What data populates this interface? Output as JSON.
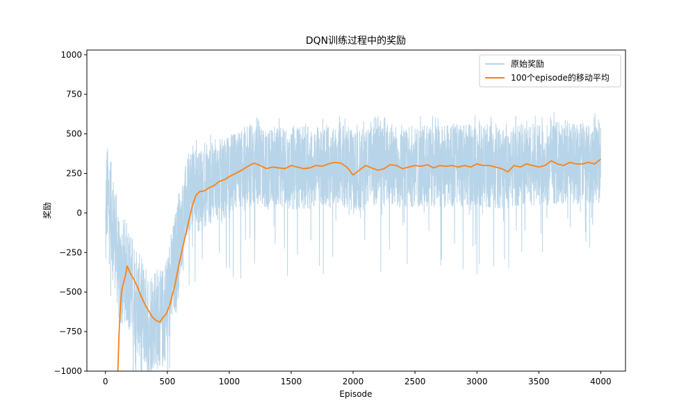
{
  "chart_data": {
    "type": "line",
    "title": "DQN训练过程中的奖励",
    "xlabel": "Episode",
    "ylabel": "奖励",
    "xlim": [
      -150,
      4200
    ],
    "ylim": [
      -1000,
      1030
    ],
    "xticks": [
      0,
      500,
      1000,
      1500,
      2000,
      2500,
      3000,
      3500,
      4000
    ],
    "yticks": [
      -1000,
      -750,
      -500,
      -250,
      0,
      250,
      500,
      750,
      1000
    ],
    "grid": false,
    "legend_position": "top-right",
    "series": [
      {
        "name": "原始奖励",
        "color": "#b8d4e8",
        "style": "noisy-band",
        "points": [
          [
            0,
            -150
          ],
          [
            10,
            120
          ],
          [
            30,
            60
          ],
          [
            60,
            -60
          ],
          [
            90,
            -220
          ],
          [
            120,
            -450
          ],
          [
            150,
            -350
          ],
          [
            200,
            -430
          ],
          [
            250,
            -560
          ],
          [
            300,
            -620
          ],
          [
            350,
            -700
          ],
          [
            400,
            -640
          ],
          [
            450,
            -700
          ],
          [
            500,
            -560
          ],
          [
            550,
            -380
          ],
          [
            600,
            -150
          ],
          [
            650,
            60
          ],
          [
            700,
            180
          ],
          [
            750,
            140
          ],
          [
            800,
            160
          ],
          [
            850,
            190
          ],
          [
            900,
            200
          ],
          [
            1000,
            230
          ],
          [
            1100,
            270
          ],
          [
            1200,
            300
          ],
          [
            1300,
            280
          ],
          [
            1400,
            290
          ],
          [
            1500,
            280
          ],
          [
            1600,
            285
          ],
          [
            1700,
            290
          ],
          [
            1800,
            300
          ],
          [
            1900,
            310
          ],
          [
            2000,
            250
          ],
          [
            2100,
            280
          ],
          [
            2200,
            300
          ],
          [
            2300,
            280
          ],
          [
            2400,
            300
          ],
          [
            2500,
            290
          ],
          [
            2600,
            300
          ],
          [
            2700,
            290
          ],
          [
            2800,
            300
          ],
          [
            2900,
            300
          ],
          [
            3000,
            300
          ],
          [
            3100,
            290
          ],
          [
            3200,
            280
          ],
          [
            3300,
            300
          ],
          [
            3400,
            310
          ],
          [
            3500,
            300
          ],
          [
            3600,
            320
          ],
          [
            3700,
            310
          ],
          [
            3800,
            320
          ],
          [
            3900,
            310
          ],
          [
            4000,
            330
          ]
        ]
      },
      {
        "name": "100个episode的移动平均",
        "color": "#ff7f0e",
        "style": "line",
        "points": [
          [
            100,
            -1000
          ],
          [
            110,
            -760
          ],
          [
            120,
            -600
          ],
          [
            130,
            -500
          ],
          [
            140,
            -460
          ],
          [
            150,
            -430
          ],
          [
            160,
            -400
          ],
          [
            175,
            -335
          ],
          [
            200,
            -380
          ],
          [
            230,
            -420
          ],
          [
            260,
            -470
          ],
          [
            290,
            -530
          ],
          [
            320,
            -580
          ],
          [
            350,
            -620
          ],
          [
            380,
            -660
          ],
          [
            410,
            -680
          ],
          [
            440,
            -690
          ],
          [
            460,
            -665
          ],
          [
            490,
            -640
          ],
          [
            520,
            -580
          ],
          [
            560,
            -460
          ],
          [
            600,
            -300
          ],
          [
            650,
            -130
          ],
          [
            700,
            40
          ],
          [
            730,
            110
          ],
          [
            760,
            135
          ],
          [
            800,
            140
          ],
          [
            840,
            160
          ],
          [
            880,
            175
          ],
          [
            920,
            200
          ],
          [
            960,
            210
          ],
          [
            1000,
            230
          ],
          [
            1050,
            250
          ],
          [
            1100,
            270
          ],
          [
            1150,
            295
          ],
          [
            1200,
            315
          ],
          [
            1250,
            300
          ],
          [
            1300,
            280
          ],
          [
            1350,
            290
          ],
          [
            1400,
            285
          ],
          [
            1450,
            280
          ],
          [
            1500,
            300
          ],
          [
            1550,
            290
          ],
          [
            1600,
            280
          ],
          [
            1650,
            285
          ],
          [
            1700,
            300
          ],
          [
            1750,
            295
          ],
          [
            1800,
            310
          ],
          [
            1850,
            320
          ],
          [
            1900,
            315
          ],
          [
            1950,
            290
          ],
          [
            2000,
            240
          ],
          [
            2050,
            270
          ],
          [
            2100,
            300
          ],
          [
            2150,
            285
          ],
          [
            2200,
            270
          ],
          [
            2250,
            280
          ],
          [
            2300,
            305
          ],
          [
            2350,
            300
          ],
          [
            2400,
            280
          ],
          [
            2450,
            290
          ],
          [
            2500,
            300
          ],
          [
            2550,
            295
          ],
          [
            2600,
            305
          ],
          [
            2650,
            285
          ],
          [
            2700,
            300
          ],
          [
            2750,
            295
          ],
          [
            2800,
            300
          ],
          [
            2850,
            290
          ],
          [
            2900,
            300
          ],
          [
            2950,
            290
          ],
          [
            3000,
            310
          ],
          [
            3050,
            300
          ],
          [
            3100,
            300
          ],
          [
            3150,
            290
          ],
          [
            3200,
            280
          ],
          [
            3250,
            260
          ],
          [
            3300,
            300
          ],
          [
            3350,
            290
          ],
          [
            3400,
            310
          ],
          [
            3450,
            300
          ],
          [
            3500,
            290
          ],
          [
            3550,
            300
          ],
          [
            3600,
            330
          ],
          [
            3650,
            310
          ],
          [
            3700,
            300
          ],
          [
            3750,
            320
          ],
          [
            3800,
            310
          ],
          [
            3850,
            310
          ],
          [
            3900,
            320
          ],
          [
            3950,
            310
          ],
          [
            4000,
            340
          ]
        ]
      }
    ]
  }
}
